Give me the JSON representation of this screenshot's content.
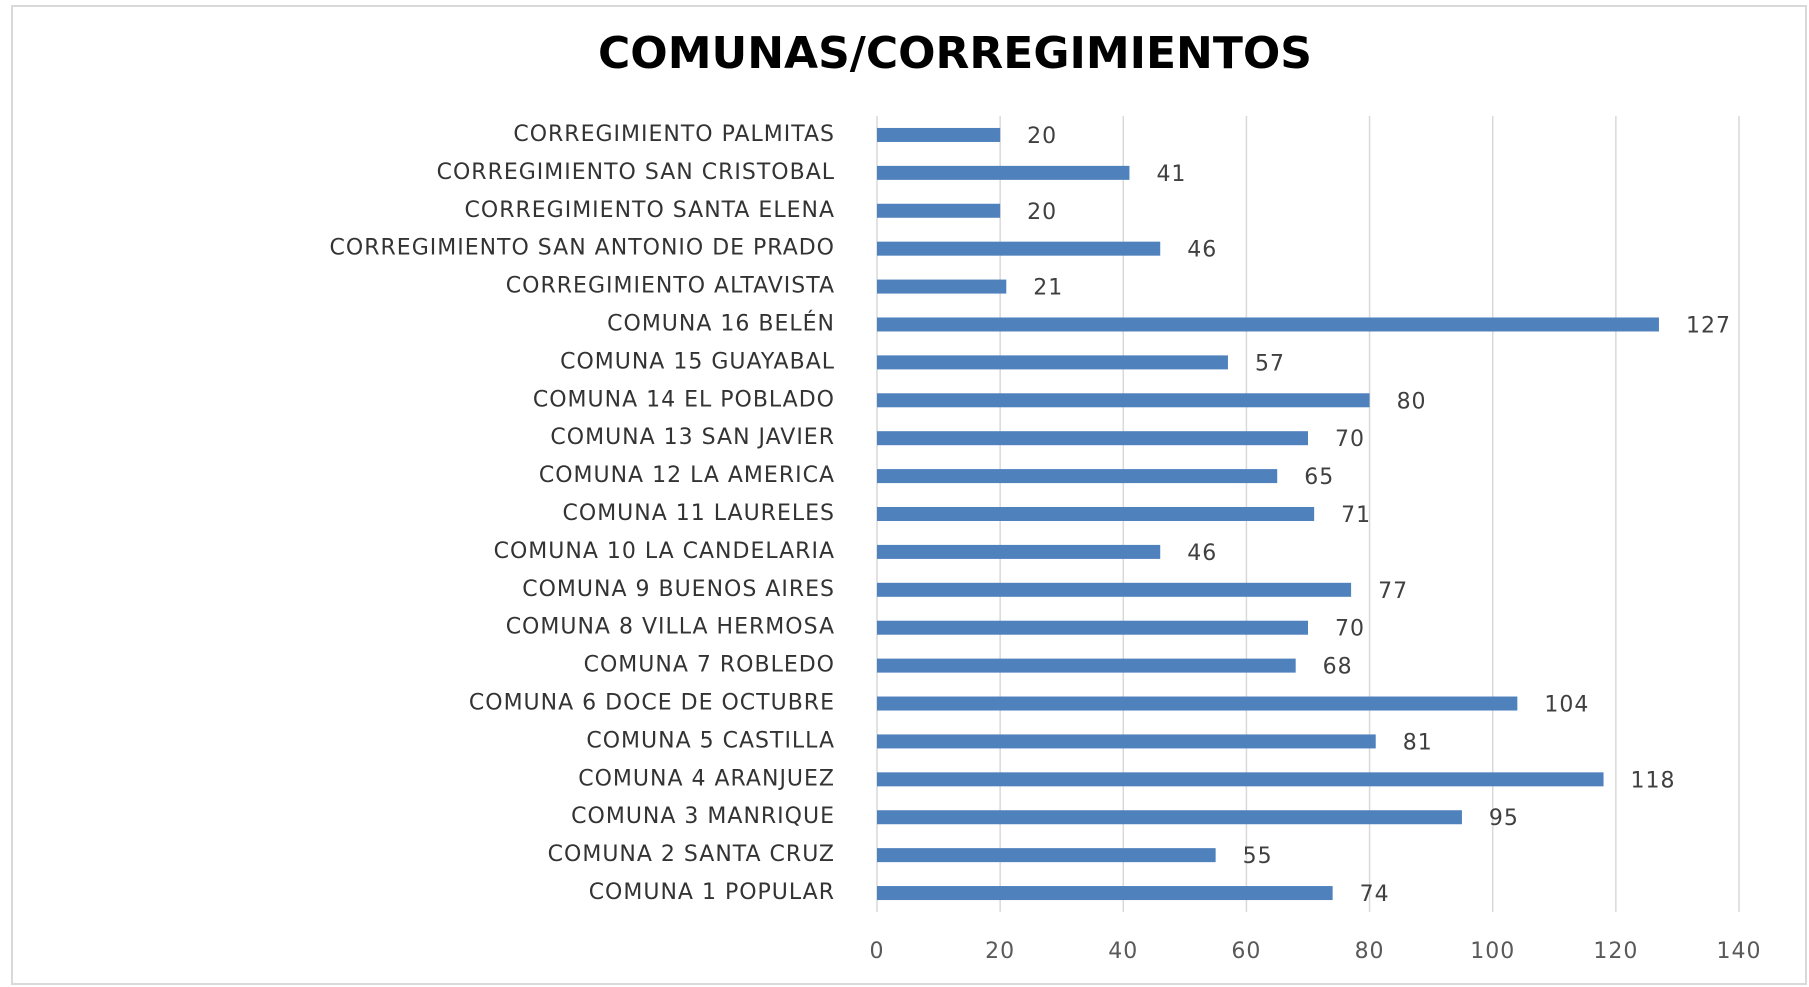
{
  "chart_data": {
    "type": "bar",
    "orientation": "horizontal",
    "title": "COMUNAS/CORREGIMIENTOS",
    "categories": [
      "CORREGIMIENTO PALMITAS",
      "CORREGIMIENTO SAN CRISTOBAL",
      "CORREGIMIENTO SANTA ELENA",
      "CORREGIMIENTO SAN ANTONIO DE PRADO",
      "CORREGIMIENTO ALTAVISTA",
      "COMUNA 16 BELÉN",
      "COMUNA 15 GUAYABAL",
      "COMUNA 14 EL POBLADO",
      "COMUNA 13 SAN JAVIER",
      "COMUNA 12 LA AMERICA",
      "COMUNA 11 LAURELES",
      "COMUNA 10 LA CANDELARIA",
      "COMUNA 9 BUENOS AIRES",
      "COMUNA 8 VILLA HERMOSA",
      "COMUNA 7 ROBLEDO",
      "COMUNA 6 DOCE DE OCTUBRE",
      "COMUNA 5 CASTILLA",
      "COMUNA 4 ARANJUEZ",
      "COMUNA 3 MANRIQUE",
      "COMUNA 2 SANTA CRUZ",
      "COMUNA 1 POPULAR"
    ],
    "values": [
      20,
      41,
      20,
      46,
      21,
      127,
      57,
      80,
      70,
      65,
      71,
      46,
      77,
      70,
      68,
      104,
      81,
      118,
      95,
      55,
      74
    ],
    "color": "#4f81bd",
    "xlim": [
      0,
      140
    ],
    "xticks": [
      0,
      20,
      40,
      60,
      80,
      100,
      120,
      140
    ],
    "grid": true,
    "data_labels": true
  }
}
